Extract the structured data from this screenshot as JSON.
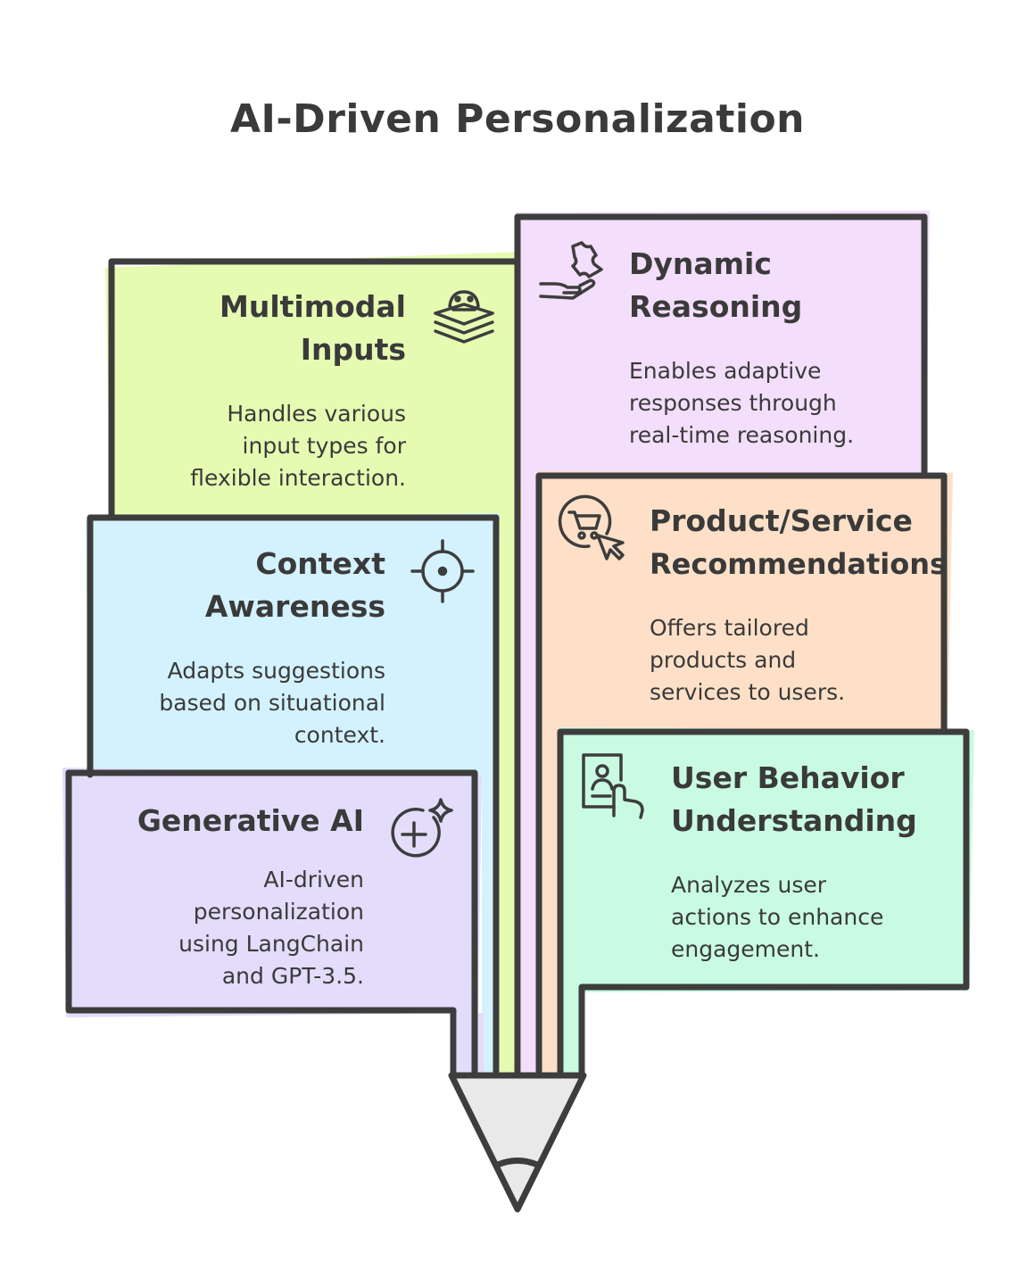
{
  "title": "AI-Driven Personalization",
  "colors": {
    "stroke": "#3d3d3d",
    "green": "#e6fbb2",
    "blue": "#d3f2fd",
    "lavender": "#e4dcfb",
    "purple": "#f3defb",
    "peach": "#fde0c7",
    "mint": "#c9fbe2",
    "tip": "#e9e9e9"
  },
  "cards": {
    "multimodal": {
      "title1": "Multimodal",
      "title2": "Inputs",
      "desc1": "Handles various",
      "desc2": "input types for",
      "desc3": "flexible interaction.",
      "icon": "gamepad-layers-icon"
    },
    "context": {
      "title1": "Context",
      "title2": "Awareness",
      "desc1": "Adapts suggestions",
      "desc2": "based on situational",
      "desc3": "context.",
      "icon": "crosshair-icon"
    },
    "generative": {
      "title1": "Generative AI",
      "desc1": "AI-driven",
      "desc2": "personalization",
      "desc3": "using LangChain",
      "desc4": "and GPT-3.5.",
      "icon": "sparkle-plus-icon"
    },
    "dynamic": {
      "title1": "Dynamic",
      "title2": "Reasoning",
      "desc1": "Enables adaptive",
      "desc2": "responses through",
      "desc3": "real-time reasoning.",
      "icon": "puzzle-hand-icon"
    },
    "product": {
      "title1": "Product/Service",
      "title2": "Recommendations",
      "desc1": "Offers tailored",
      "desc2": "products and",
      "desc3": "services to users.",
      "icon": "cart-cursor-icon"
    },
    "user": {
      "title1": "User Behavior",
      "title2": "Understanding",
      "desc1": "Analyzes user",
      "desc2": "actions to enhance",
      "desc3": "engagement.",
      "icon": "profile-touch-icon"
    }
  }
}
